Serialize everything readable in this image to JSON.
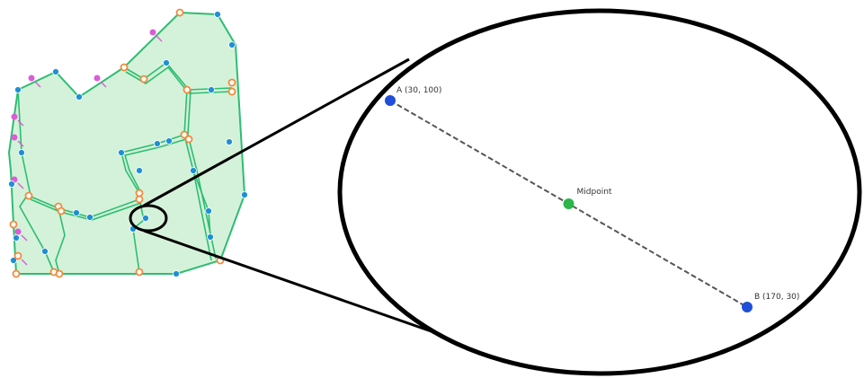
{
  "colors": {
    "map_fill": "#d4f2d9",
    "map_edge": "#2dbd72",
    "vertex_blue": "#1e8fd6",
    "vertex_orange": "#f28a3c",
    "marker_magenta": "#d85fd6",
    "point_blue": "#1f4fd8",
    "midpoint_green": "#2bb54a",
    "outline": "#000000"
  },
  "icons": {
    "vertex": "circle",
    "marker": "circle-with-arrow"
  },
  "zoom": {
    "point_a": {
      "label": "A (30, 100)",
      "x": 30,
      "y": 100
    },
    "point_b": {
      "label": "B (170, 30)",
      "x": 170,
      "y": 30
    },
    "midpoint": {
      "label": "Midpoint",
      "x": 100,
      "y": 65
    }
  }
}
